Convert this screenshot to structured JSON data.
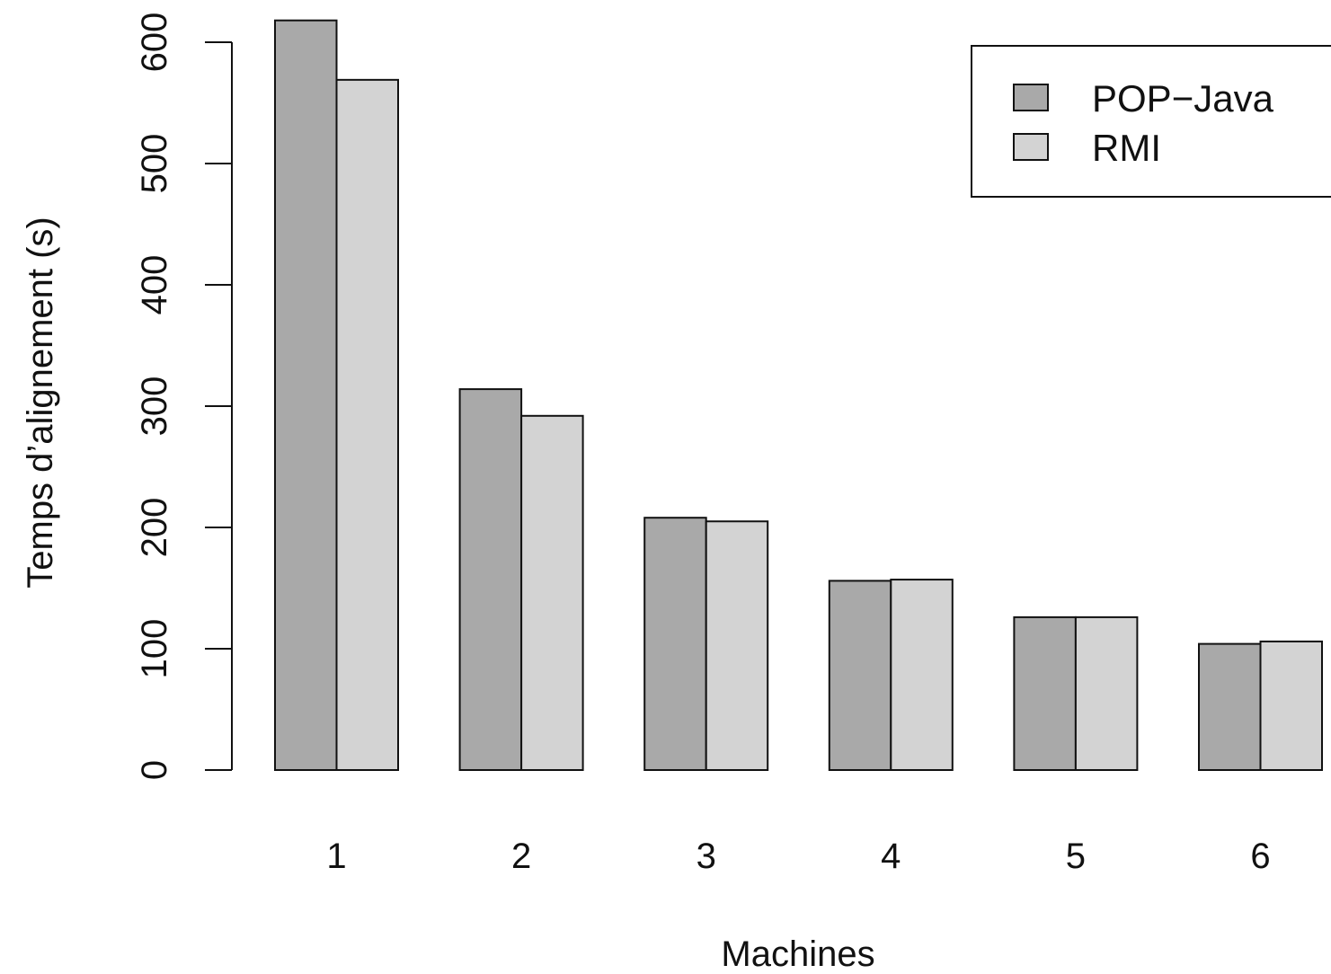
{
  "chart_data": {
    "type": "bar",
    "categories": [
      "1",
      "2",
      "3",
      "4",
      "5",
      "6"
    ],
    "series": [
      {
        "name": "POP−Java",
        "values": [
          618,
          314,
          208,
          156,
          126,
          104
        ],
        "color": "#a9a9a9"
      },
      {
        "name": "RMI",
        "values": [
          569,
          292,
          205,
          157,
          126,
          106
        ],
        "color": "#d3d3d3"
      }
    ],
    "xlabel": "Machines",
    "ylabel": "Temps d’alignement (s)",
    "ylim": [
      0,
      600
    ],
    "yticks": [
      0,
      100,
      200,
      300,
      400,
      500,
      600
    ],
    "grid": false,
    "legend_position": "top-right",
    "bar_border_color": "#111111"
  }
}
